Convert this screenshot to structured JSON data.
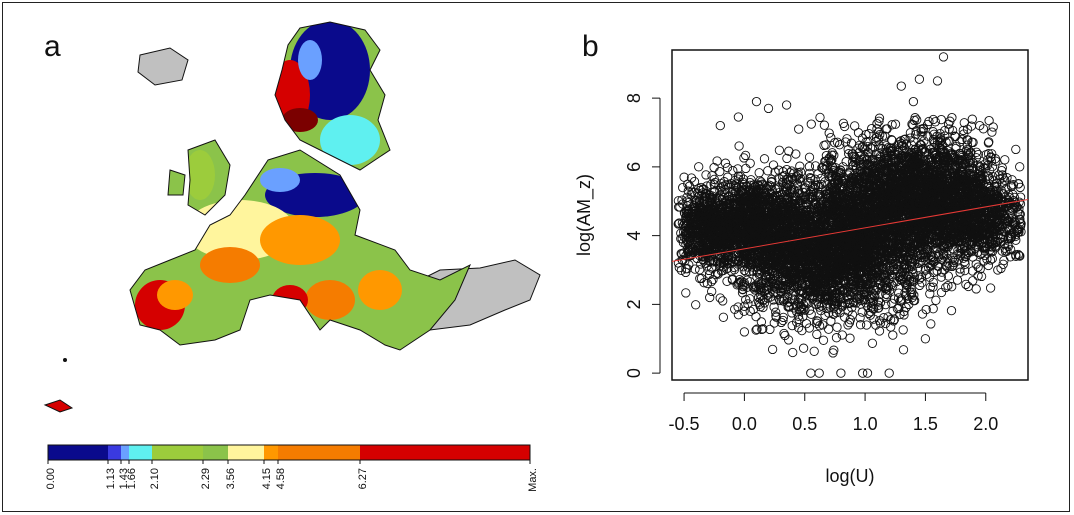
{
  "panels": {
    "a_label": "a",
    "b_label": "b"
  },
  "map": {
    "colors": {
      "sea_background": "#ffffff",
      "non_study_area": "#c0c0c0",
      "outline": "#111111"
    }
  },
  "legend": {
    "breaks": [
      "0.00",
      "1.13",
      "1.43",
      "1.66",
      "2.10",
      "2.29",
      "3.56",
      "4.15",
      "4.58",
      "6.27",
      "Max."
    ],
    "colors": [
      "#0a0a8c",
      "#3a3ae0",
      "#6aa0ff",
      "#5ff0f0",
      "#9ccc3c",
      "#8bc34a",
      "#fff59d",
      "#ff9800",
      "#f57c00",
      "#d50000",
      "#7b0000"
    ]
  },
  "chart_data": {
    "type": "scatter",
    "title": "",
    "xlabel": "log(U)",
    "ylabel": "log(AM_z)",
    "xlim": [
      -0.6,
      2.35
    ],
    "ylim": [
      -0.2,
      9.4
    ],
    "xticks": [
      "-0.5",
      "0.0",
      "0.5",
      "1.0",
      "1.5",
      "2.0"
    ],
    "yticks": [
      "0",
      "2",
      "4",
      "6",
      "8"
    ],
    "marker": "open-circle",
    "point_color": "#111111",
    "regression_line": {
      "color": "#e53935",
      "x": [
        -0.6,
        2.35
      ],
      "y": [
        3.25,
        5.05
      ]
    },
    "clusters": [
      {
        "cx": -0.3,
        "cy": 4.2,
        "sx": 0.18,
        "sy": 0.55,
        "n": 700
      },
      {
        "cx": 0.1,
        "cy": 4.3,
        "sx": 0.22,
        "sy": 0.75,
        "n": 1100
      },
      {
        "cx": 0.55,
        "cy": 3.4,
        "sx": 0.3,
        "sy": 0.9,
        "n": 1500
      },
      {
        "cx": 1.0,
        "cy": 4.1,
        "sx": 0.3,
        "sy": 1.1,
        "n": 1800
      },
      {
        "cx": 1.45,
        "cy": 5.2,
        "sx": 0.3,
        "sy": 0.9,
        "n": 1800
      },
      {
        "cx": 1.9,
        "cy": 4.6,
        "sx": 0.22,
        "sy": 0.7,
        "n": 900
      }
    ],
    "outliers": [
      [
        -0.5,
        5.7
      ],
      [
        -0.2,
        7.2
      ],
      [
        -0.05,
        7.45
      ],
      [
        0.1,
        7.9
      ],
      [
        0.2,
        7.7
      ],
      [
        0.35,
        7.8
      ],
      [
        0.45,
        7.1
      ],
      [
        1.3,
        8.35
      ],
      [
        1.45,
        8.55
      ],
      [
        1.6,
        8.5
      ],
      [
        1.65,
        9.2
      ],
      [
        1.4,
        7.9
      ],
      [
        1.95,
        7.2
      ],
      [
        0.55,
        0.0
      ],
      [
        0.62,
        0.0
      ],
      [
        0.8,
        0.0
      ],
      [
        0.98,
        0.0
      ],
      [
        1.02,
        0.0
      ],
      [
        1.2,
        0.0
      ],
      [
        0.0,
        1.2
      ],
      [
        -0.05,
        1.7
      ],
      [
        0.4,
        0.6
      ],
      [
        1.5,
        1.0
      ],
      [
        2.25,
        3.4
      ],
      [
        2.1,
        3.0
      ]
    ]
  }
}
